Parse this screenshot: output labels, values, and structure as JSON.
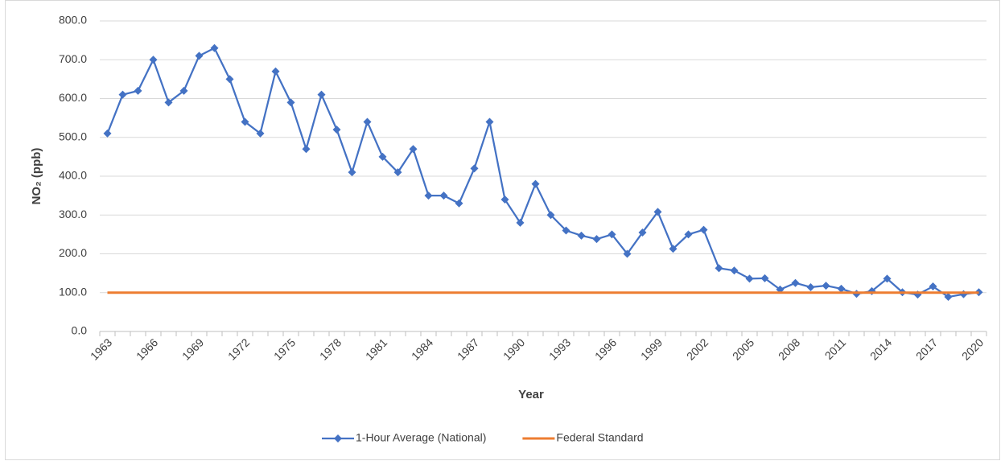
{
  "chart_data": {
    "type": "line",
    "x_label": "Year",
    "y_label": "NO₂ (ppb)",
    "categories": [
      "1963",
      null,
      null,
      "1966",
      null,
      null,
      "1969",
      null,
      null,
      "1972",
      null,
      null,
      "1975",
      null,
      null,
      "1978",
      null,
      null,
      "1981",
      null,
      null,
      "1984",
      null,
      null,
      "1987",
      null,
      null,
      "1990",
      null,
      null,
      "1993",
      null,
      null,
      "1996",
      null,
      null,
      "1999",
      null,
      null,
      "2002",
      null,
      null,
      "2005",
      null,
      null,
      "2008",
      null,
      null,
      "2011",
      null,
      null,
      "2014",
      null,
      null,
      "2017",
      null,
      null,
      "2020"
    ],
    "series": [
      {
        "name": "1-Hour Average (National)",
        "color": "#4472c4",
        "marker": "diamond",
        "values": [
          510,
          610,
          620,
          700,
          590,
          620,
          710,
          730,
          650,
          540,
          510,
          670,
          590,
          470,
          610,
          520,
          410,
          540,
          450,
          410,
          470,
          350,
          350,
          330,
          420,
          540,
          340,
          280,
          380,
          300,
          260,
          247,
          238,
          250,
          200,
          255,
          308,
          213,
          250,
          262,
          163,
          157,
          136,
          137,
          108,
          125,
          114,
          118,
          110,
          97,
          104,
          136,
          101,
          95,
          116,
          89,
          96,
          101
        ]
      },
      {
        "name": "Federal Standard",
        "color": "#ed7d31",
        "values": [
          100,
          100,
          100,
          100,
          100,
          100,
          100,
          100,
          100,
          100,
          100,
          100,
          100,
          100,
          100,
          100,
          100,
          100,
          100,
          100,
          100,
          100,
          100,
          100,
          100,
          100,
          100,
          100,
          100,
          100,
          100,
          100,
          100,
          100,
          100,
          100,
          100,
          100,
          100,
          100,
          100,
          100,
          100,
          100,
          100,
          100,
          100,
          100,
          100,
          100,
          100,
          100,
          100,
          100,
          100,
          100,
          100,
          100
        ]
      }
    ],
    "ylim": [
      0,
      800
    ],
    "yticks": [
      {
        "value": 0,
        "label": "0.0"
      },
      {
        "value": 100,
        "label": "100.0"
      },
      {
        "value": 200,
        "label": "200.0"
      },
      {
        "value": 300,
        "label": "300.0"
      },
      {
        "value": 400,
        "label": "400.0"
      },
      {
        "value": 500,
        "label": "500.0"
      },
      {
        "value": 600,
        "label": "600.0"
      },
      {
        "value": 700,
        "label": "700.0"
      },
      {
        "value": 800,
        "label": "800.0"
      }
    ],
    "grid": true,
    "legend": "bottom"
  }
}
